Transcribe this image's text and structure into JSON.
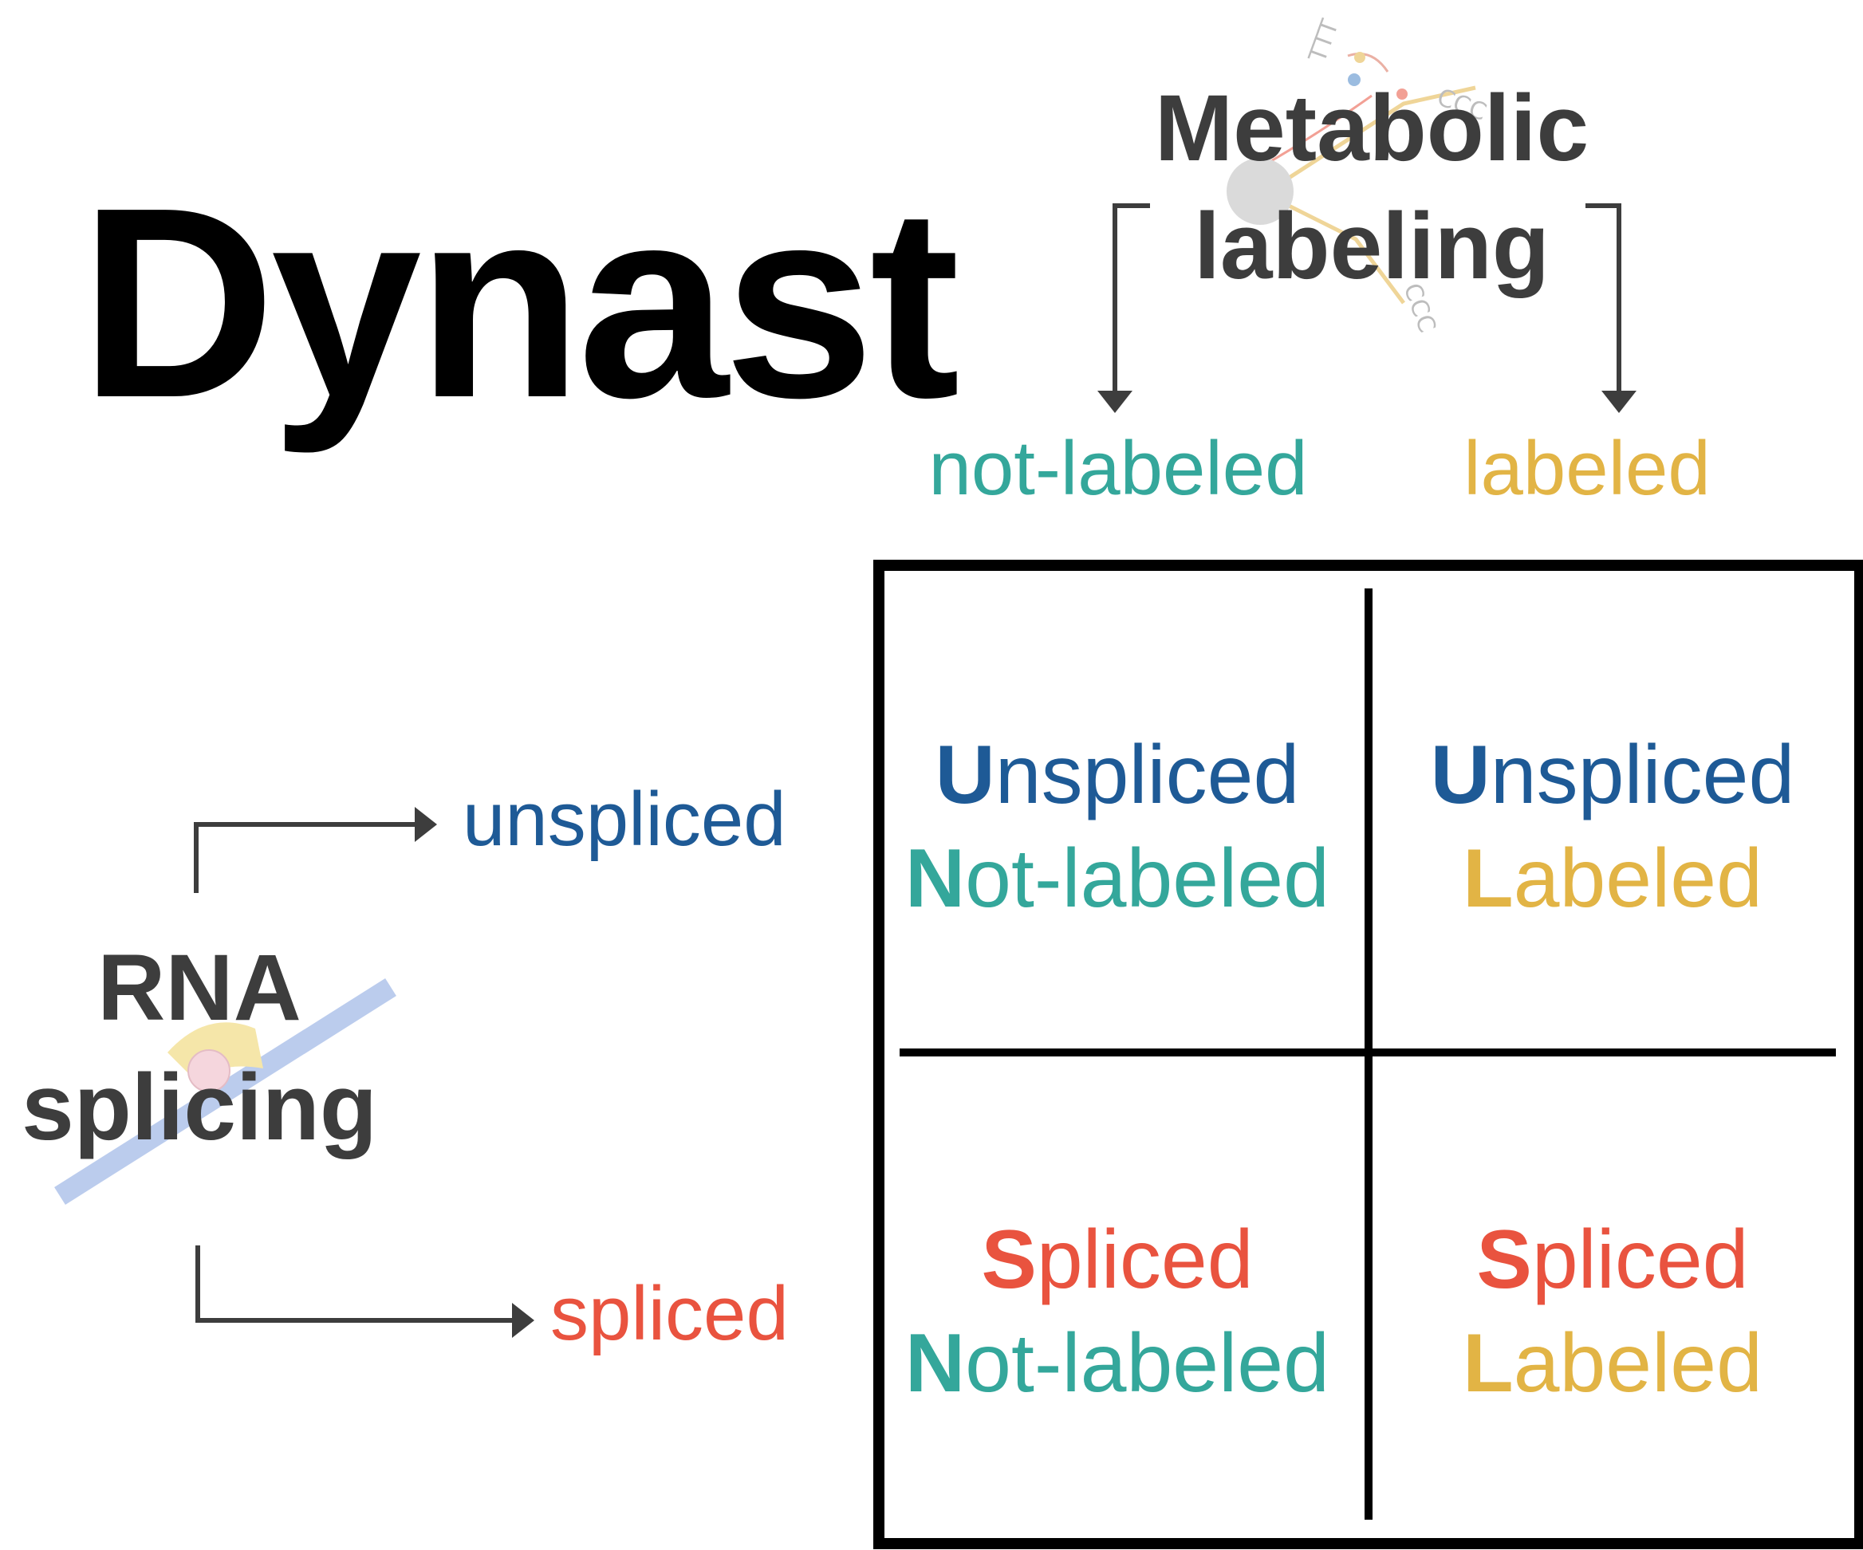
{
  "title": "Dynast",
  "metabolic": {
    "line1": "Metabolic",
    "line2": "labeling"
  },
  "splicing": {
    "line1": "RNA",
    "line2": "splicing"
  },
  "column_labels": {
    "not_labeled": "not-labeled",
    "labeled": "labeled"
  },
  "row_labels": {
    "unspliced": "unspliced",
    "spliced": "spliced"
  },
  "cells": {
    "top_left": {
      "l1_initial": "U",
      "l1_rest": "nspliced",
      "l2_initial": "N",
      "l2_rest": "ot-labeled"
    },
    "top_right": {
      "l1_initial": "U",
      "l1_rest": "nspliced",
      "l2_initial": "L",
      "l2_rest": "abeled"
    },
    "bottom_left": {
      "l1_initial": "S",
      "l1_rest": "pliced",
      "l2_initial": "N",
      "l2_rest": "ot-labeled"
    },
    "bottom_right": {
      "l1_initial": "S",
      "l1_rest": "pliced",
      "l2_initial": "L",
      "l2_rest": "abeled"
    }
  },
  "colors": {
    "not_labeled": "#34a79b",
    "labeled": "#e2b445",
    "unspliced": "#1e5a96",
    "spliced": "#e9533f",
    "text_dark": "#3d3d3d",
    "grid": "#000000"
  }
}
